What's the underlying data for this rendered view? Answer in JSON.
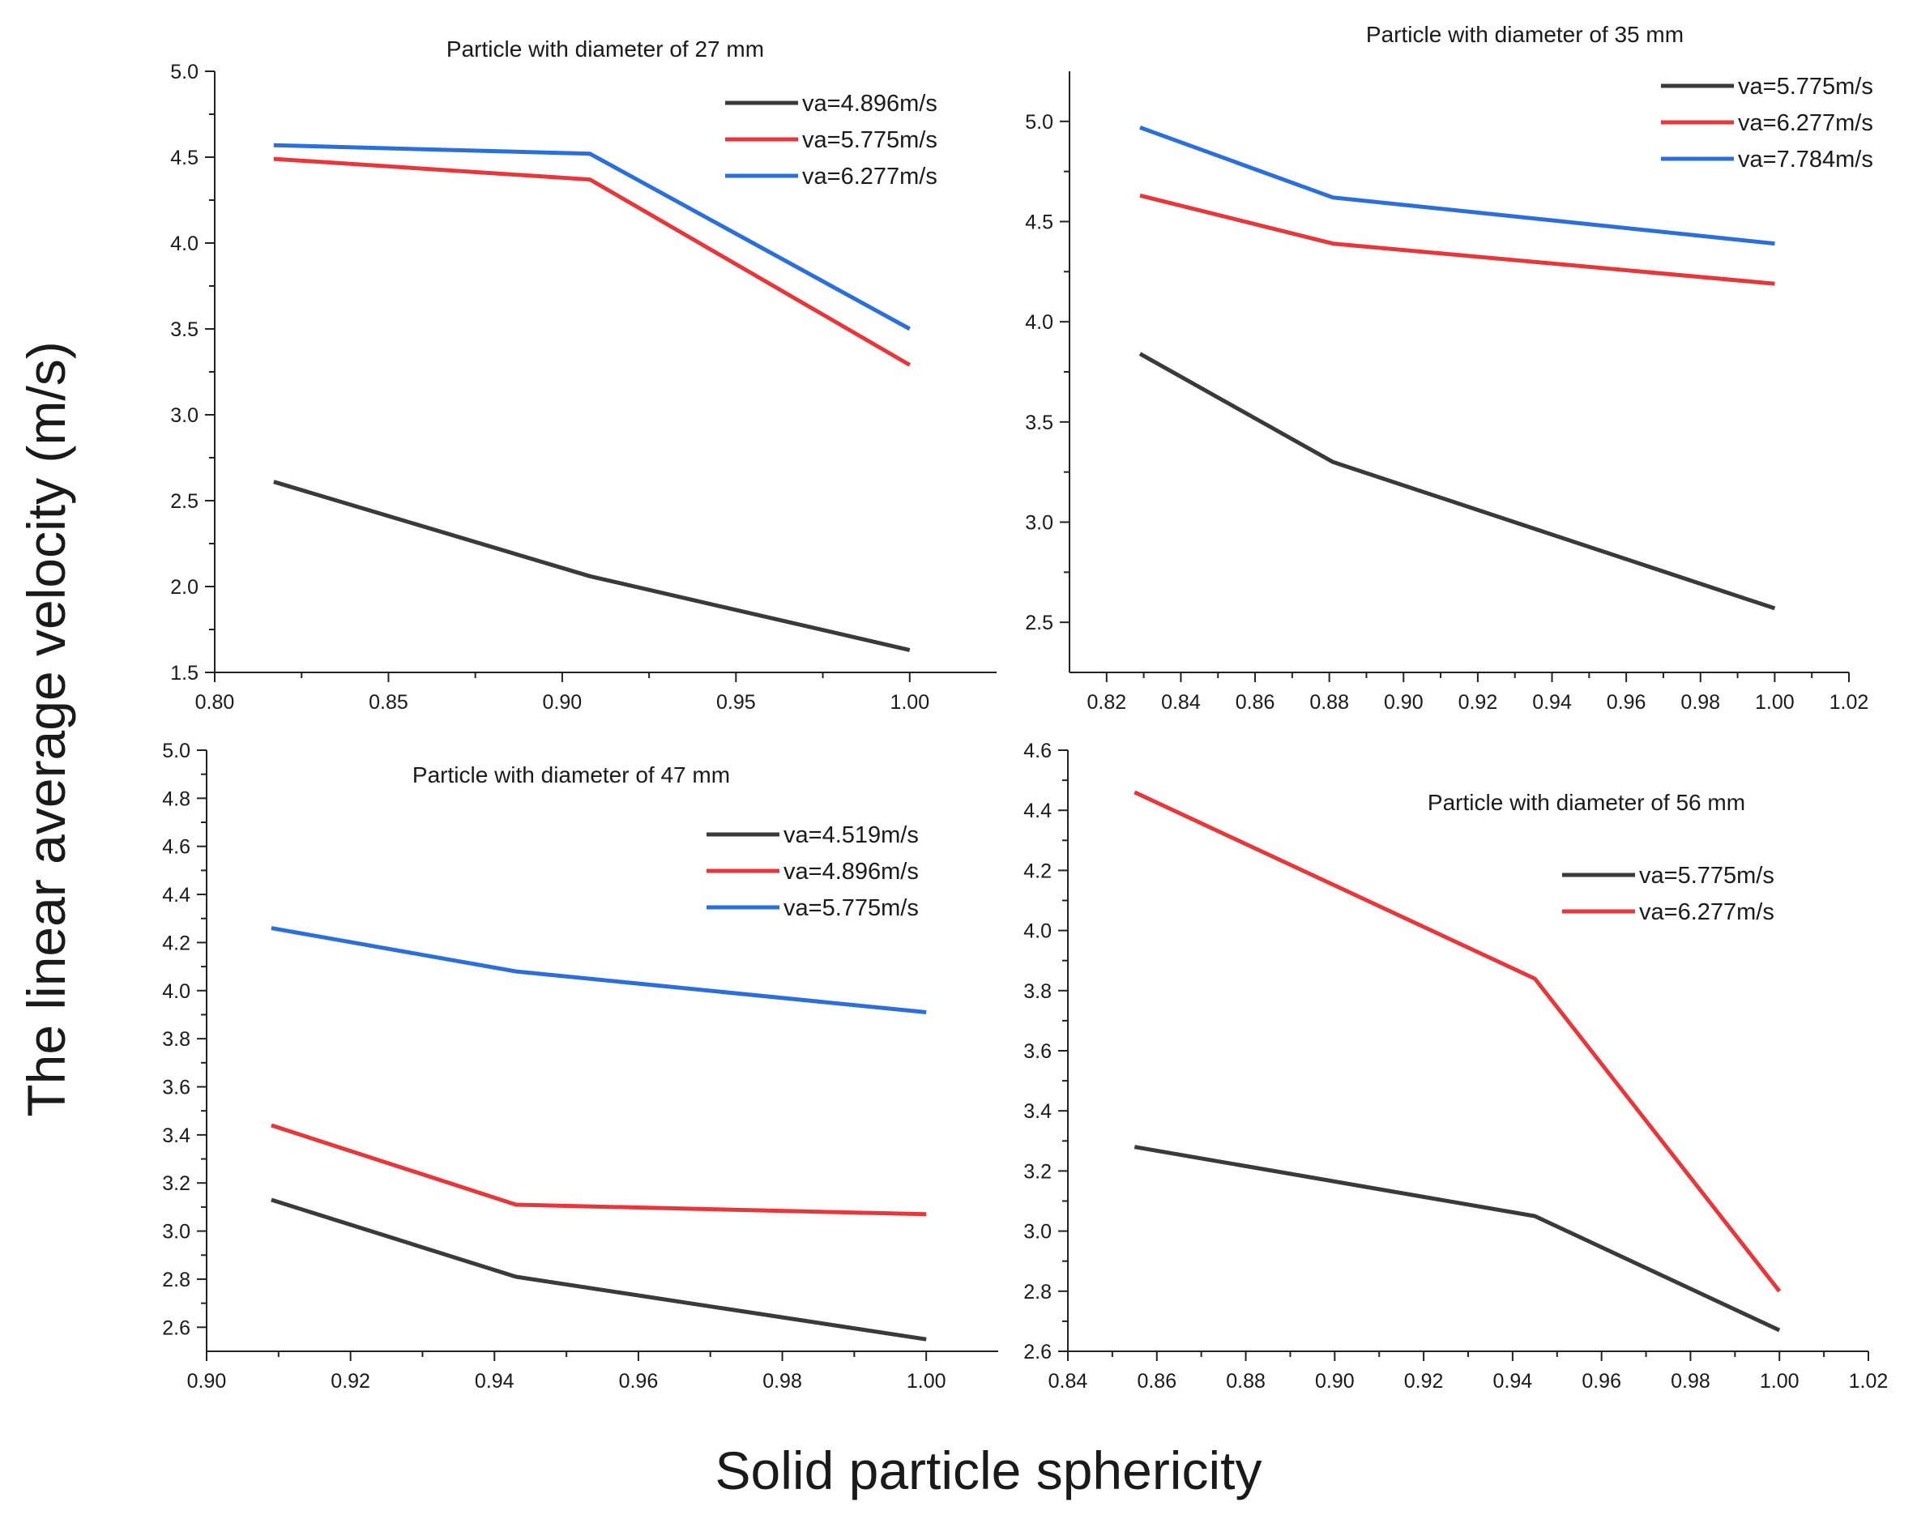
{
  "figure": {
    "ylabel": "The linear average velocity  (m/s)",
    "xlabel": "Solid particle sphericity"
  },
  "colors": {
    "black_series": "#3a3a3a",
    "red_series": "#e8363a",
    "blue_series": "#2a6fdb",
    "axis": "#222222"
  },
  "chart_data": [
    {
      "type": "line",
      "title": "Particle with diameter of 27 mm",
      "xlim": [
        0.8,
        1.025
      ],
      "ylim": [
        1.5,
        5.0
      ],
      "xticks": [
        0.8,
        0.85,
        0.9,
        0.95,
        1.0
      ],
      "xtick_labels": [
        "0.80",
        "0.85",
        "0.90",
        "0.95",
        "1.00"
      ],
      "yticks": [
        1.5,
        2.0,
        2.5,
        3.0,
        3.5,
        4.0,
        4.5,
        5.0
      ],
      "ytick_labels": [
        "1.5",
        "2.0",
        "2.5",
        "3.0",
        "3.5",
        "4.0",
        "4.5",
        "5.0"
      ],
      "legend_position": "top-right",
      "grid": false,
      "series": [
        {
          "name": "va=4.896m/s",
          "color": "#3a3a3a",
          "x": [
            0.817,
            0.908,
            1.0
          ],
          "y": [
            2.61,
            2.06,
            1.63
          ]
        },
        {
          "name": "va=5.775m/s",
          "color": "#e8363a",
          "x": [
            0.817,
            0.908,
            1.0
          ],
          "y": [
            4.49,
            4.37,
            3.29
          ]
        },
        {
          "name": "va=6.277m/s",
          "color": "#2a6fdb",
          "x": [
            0.817,
            0.908,
            1.0
          ],
          "y": [
            4.57,
            4.52,
            3.5
          ]
        }
      ]
    },
    {
      "type": "line",
      "title": "Particle with diameter of 35 mm",
      "xlim": [
        0.81,
        1.02
      ],
      "ylim": [
        2.25,
        5.25
      ],
      "xticks": [
        0.82,
        0.84,
        0.86,
        0.88,
        0.9,
        0.92,
        0.94,
        0.96,
        0.98,
        1.0,
        1.02
      ],
      "xtick_labels": [
        "0.82",
        "0.84",
        "0.86",
        "0.88",
        "0.90",
        "0.92",
        "0.94",
        "0.96",
        "0.98",
        "1.00",
        "1.02"
      ],
      "yticks": [
        2.5,
        3.0,
        3.5,
        4.0,
        4.5,
        5.0
      ],
      "ytick_labels": [
        "2.5",
        "3.0",
        "3.5",
        "4.0",
        "4.5",
        "5.0"
      ],
      "legend_position": "top-right",
      "grid": false,
      "series": [
        {
          "name": "va=5.775m/s",
          "color": "#3a3a3a",
          "x": [
            0.829,
            0.881,
            1.0
          ],
          "y": [
            3.84,
            3.3,
            2.57
          ]
        },
        {
          "name": "va=6.277m/s",
          "color": "#e8363a",
          "x": [
            0.829,
            0.881,
            1.0
          ],
          "y": [
            4.63,
            4.39,
            4.19
          ]
        },
        {
          "name": "va=7.784m/s",
          "color": "#2a6fdb",
          "x": [
            0.829,
            0.881,
            1.0
          ],
          "y": [
            4.97,
            4.62,
            4.39
          ]
        }
      ]
    },
    {
      "type": "line",
      "title": "Particle with diameter of 47 mm",
      "xlim": [
        0.9,
        1.01
      ],
      "ylim": [
        2.5,
        5.0
      ],
      "xticks": [
        0.9,
        0.92,
        0.94,
        0.96,
        0.98,
        1.0
      ],
      "xtick_labels": [
        "0.90",
        "0.92",
        "0.94",
        "0.96",
        "0.98",
        "1.00"
      ],
      "yticks": [
        2.6,
        2.8,
        3.0,
        3.2,
        3.4,
        3.6,
        3.8,
        4.0,
        4.2,
        4.4,
        4.6,
        4.8,
        5.0
      ],
      "ytick_labels": [
        "2.6",
        "2.8",
        "3.0",
        "3.2",
        "3.4",
        "3.6",
        "3.8",
        "4.0",
        "4.2",
        "4.4",
        "4.6",
        "4.8",
        "5.0"
      ],
      "legend_position": "top-right",
      "grid": false,
      "series": [
        {
          "name": "va=4.519m/s",
          "color": "#3a3a3a",
          "x": [
            0.909,
            0.943,
            1.0
          ],
          "y": [
            3.13,
            2.81,
            2.55
          ]
        },
        {
          "name": "va=4.896m/s",
          "color": "#e8363a",
          "x": [
            0.909,
            0.943,
            1.0
          ],
          "y": [
            3.44,
            3.11,
            3.07
          ]
        },
        {
          "name": "va=5.775m/s",
          "color": "#2a6fdb",
          "x": [
            0.909,
            0.943,
            1.0
          ],
          "y": [
            4.26,
            4.08,
            3.91
          ]
        }
      ]
    },
    {
      "type": "line",
      "title": "Particle with diameter of 56 mm",
      "xlim": [
        0.84,
        1.02
      ],
      "ylim": [
        2.6,
        4.6
      ],
      "xticks": [
        0.84,
        0.86,
        0.88,
        0.9,
        0.92,
        0.94,
        0.96,
        0.98,
        1.0,
        1.02
      ],
      "xtick_labels": [
        "0.84",
        "0.86",
        "0.88",
        "0.90",
        "0.92",
        "0.94",
        "0.96",
        "0.98",
        "1.00",
        "1.02"
      ],
      "yticks": [
        2.6,
        2.8,
        3.0,
        3.2,
        3.4,
        3.6,
        3.8,
        4.0,
        4.2,
        4.4,
        4.6
      ],
      "ytick_labels": [
        "2.6",
        "2.8",
        "3.0",
        "3.2",
        "3.4",
        "3.6",
        "3.8",
        "4.0",
        "4.2",
        "4.4",
        "4.6"
      ],
      "legend_position": "top-right",
      "grid": false,
      "series": [
        {
          "name": "va=5.775m/s",
          "color": "#3a3a3a",
          "x": [
            0.855,
            0.945,
            1.0
          ],
          "y": [
            3.28,
            3.05,
            2.67
          ]
        },
        {
          "name": "va=6.277m/s",
          "color": "#e8363a",
          "x": [
            0.855,
            0.945,
            1.0
          ],
          "y": [
            4.46,
            3.84,
            2.8
          ]
        }
      ]
    }
  ]
}
